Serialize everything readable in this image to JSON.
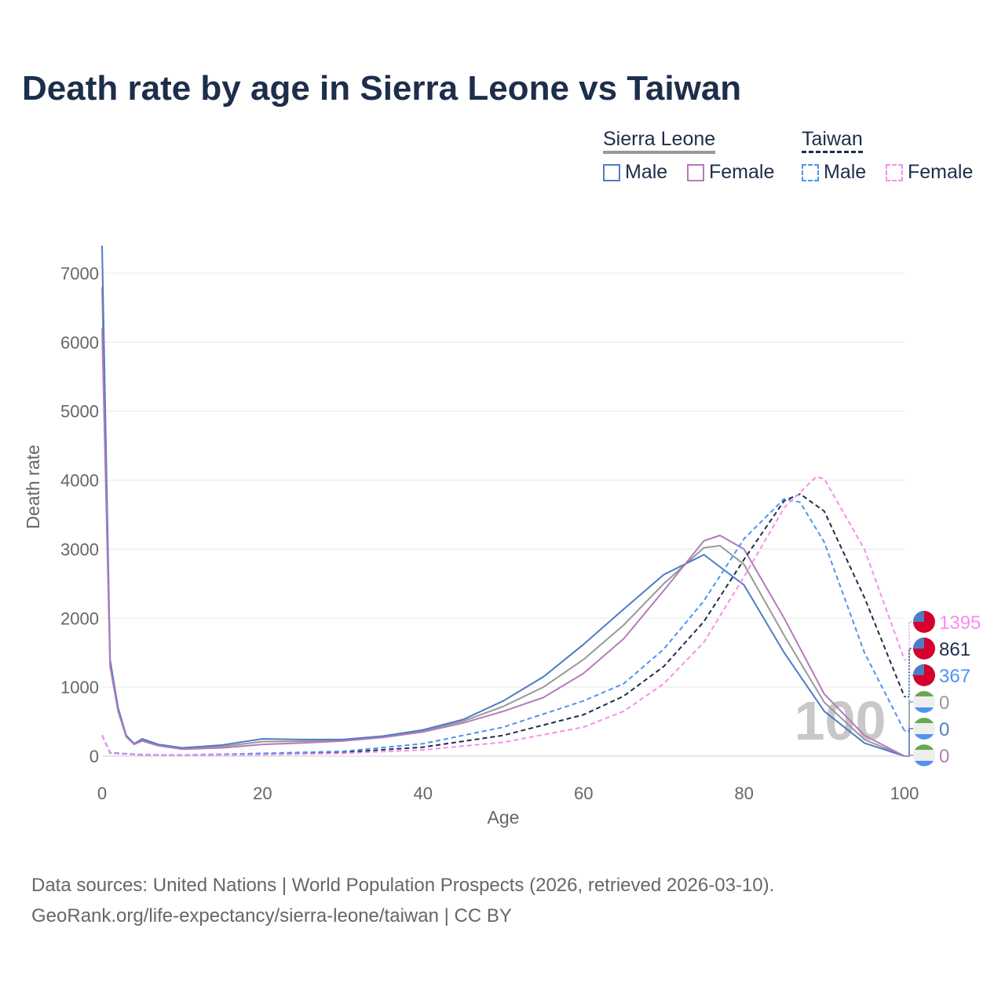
{
  "title": "Death rate by age in Sierra Leone vs Taiwan",
  "legend": {
    "groups": [
      {
        "name": "Sierra Leone",
        "items": [
          "Male",
          "Female"
        ]
      },
      {
        "name": "Taiwan",
        "items": [
          "Male",
          "Female"
        ]
      }
    ]
  },
  "source": {
    "line1": "Data sources: United Nations | World Population Prospects (2026, retrieved 2026-03-10).",
    "line2": "GeoRank.org/life-expectancy/sierra-leone/taiwan | CC BY"
  },
  "chart_data": {
    "type": "line",
    "title": "Death rate by age in Sierra Leone vs Taiwan",
    "xlabel": "Age",
    "ylabel": "Death rate",
    "xlim": [
      0,
      100
    ],
    "ylim": [
      0,
      7400
    ],
    "xticks": [
      0,
      20,
      40,
      60,
      80,
      100
    ],
    "yticks": [
      0,
      1000,
      2000,
      3000,
      4000,
      5000,
      6000,
      7000
    ],
    "highlight_age": "100",
    "series": [
      {
        "name": "Sierra Leone Total",
        "color": "#999999",
        "dash": false,
        "end_label": "0",
        "flag": "sierra-leone",
        "x": [
          0,
          1,
          2,
          3,
          4,
          5,
          7,
          10,
          15,
          20,
          25,
          30,
          35,
          40,
          45,
          50,
          55,
          60,
          65,
          70,
          75,
          77,
          80,
          85,
          90,
          95,
          100
        ],
        "y": [
          6800,
          1350,
          680,
          290,
          175,
          235,
          160,
          110,
          140,
          210,
          215,
          230,
          280,
          365,
          505,
          720,
          1000,
          1400,
          1900,
          2500,
          3020,
          3050,
          2780,
          1750,
          780,
          240,
          0
        ]
      },
      {
        "name": "Sierra Leone Male",
        "color": "#4e7cc7",
        "dash": false,
        "end_label": "0",
        "flag": "sierra-leone",
        "x": [
          0,
          1,
          2,
          3,
          4,
          5,
          7,
          10,
          15,
          20,
          25,
          30,
          35,
          40,
          45,
          50,
          55,
          60,
          65,
          70,
          75,
          80,
          85,
          90,
          95,
          100
        ],
        "y": [
          7400,
          1400,
          700,
          300,
          180,
          250,
          170,
          120,
          160,
          250,
          240,
          240,
          290,
          380,
          530,
          800,
          1150,
          1620,
          2130,
          2630,
          2920,
          2480,
          1500,
          650,
          190,
          0
        ]
      },
      {
        "name": "Sierra Leone Female",
        "color": "#b57ab8",
        "dash": false,
        "end_label": "0",
        "flag": "sierra-leone",
        "x": [
          0,
          1,
          2,
          3,
          4,
          5,
          7,
          10,
          15,
          20,
          25,
          30,
          35,
          40,
          45,
          50,
          55,
          60,
          65,
          70,
          75,
          77,
          80,
          85,
          90,
          95,
          100
        ],
        "y": [
          6200,
          1300,
          650,
          280,
          170,
          220,
          150,
          100,
          120,
          170,
          190,
          220,
          270,
          350,
          480,
          650,
          850,
          1200,
          1700,
          2400,
          3120,
          3200,
          3000,
          2000,
          900,
          300,
          0
        ]
      },
      {
        "name": "Taiwan Total",
        "color": "#1d2e4a",
        "dash": true,
        "end_label": "861",
        "flag": "taiwan",
        "x": [
          0,
          1,
          5,
          10,
          20,
          30,
          40,
          50,
          60,
          65,
          70,
          75,
          80,
          85,
          87,
          90,
          95,
          100
        ],
        "y": [
          300,
          45,
          18,
          12,
          30,
          55,
          130,
          300,
          600,
          870,
          1300,
          1950,
          2850,
          3700,
          3800,
          3550,
          2300,
          861
        ]
      },
      {
        "name": "Taiwan Male",
        "color": "#4d94f0",
        "dash": true,
        "end_label": "367",
        "flag": "taiwan",
        "x": [
          0,
          1,
          5,
          10,
          20,
          30,
          40,
          50,
          60,
          65,
          70,
          75,
          80,
          85,
          87,
          90,
          95,
          100
        ],
        "y": [
          300,
          50,
          20,
          15,
          40,
          70,
          180,
          420,
          800,
          1050,
          1550,
          2250,
          3150,
          3730,
          3680,
          3100,
          1500,
          367
        ]
      },
      {
        "name": "Taiwan Female",
        "color": "#f98cf0",
        "dash": true,
        "end_label": "1395",
        "flag": "taiwan",
        "x": [
          0,
          1,
          5,
          10,
          20,
          30,
          40,
          50,
          60,
          65,
          70,
          75,
          80,
          85,
          89,
          90,
          95,
          100
        ],
        "y": [
          300,
          40,
          15,
          10,
          20,
          40,
          90,
          200,
          420,
          650,
          1050,
          1650,
          2600,
          3600,
          4050,
          4020,
          3000,
          1395
        ]
      }
    ]
  }
}
